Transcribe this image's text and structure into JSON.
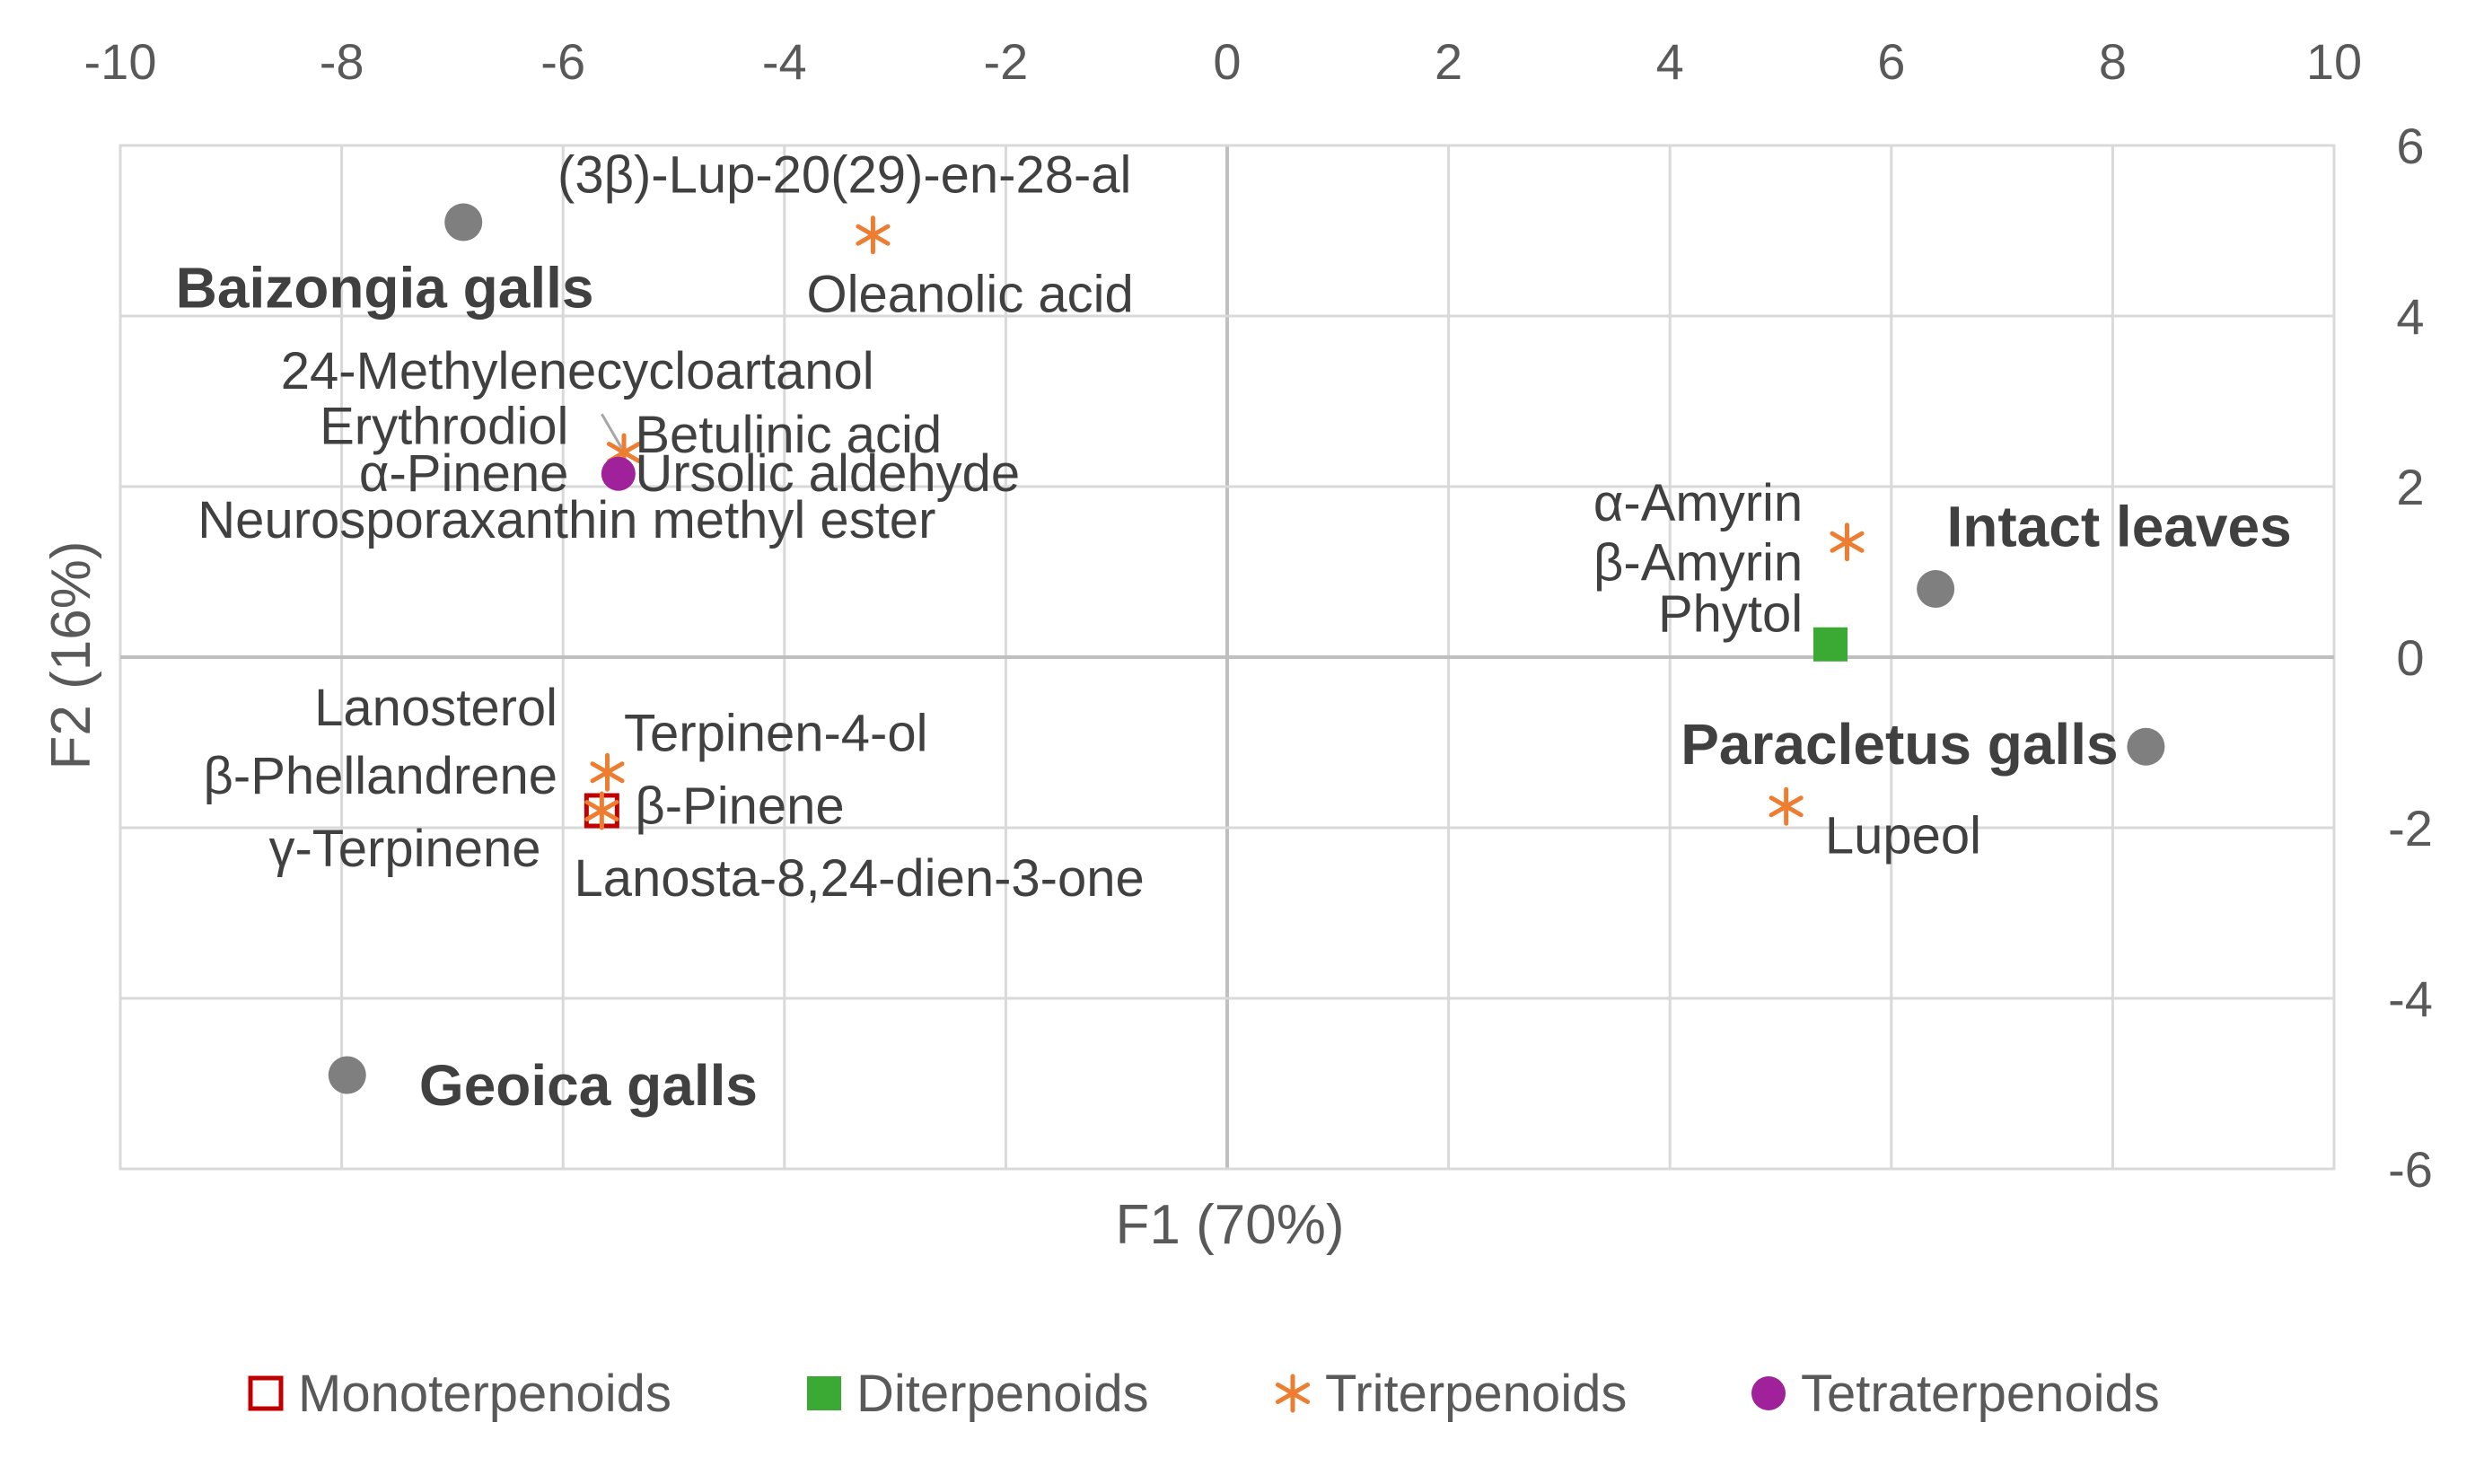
{
  "chart_data": {
    "type": "scatter",
    "title": "",
    "xlabel": "F1 (70%)",
    "ylabel": "F2 (16%)",
    "xlim": [
      -10,
      10
    ],
    "ylim": [
      -6,
      6
    ],
    "x_ticks": [
      -10,
      -8,
      -6,
      -4,
      -2,
      0,
      2,
      4,
      6,
      8,
      10
    ],
    "y_ticks": [
      -6,
      -4,
      -2,
      0,
      2,
      4,
      6
    ],
    "x_axis_position": "top",
    "y_axis_position": "right",
    "grid": true,
    "legend": "bottom",
    "samples": [
      {
        "label": "Baizongia galls",
        "x": -6.9,
        "y": 5.1
      },
      {
        "label": "Intact leaves",
        "x": 6.4,
        "y": 0.8
      },
      {
        "label": "Paracletus galls",
        "x": 8.3,
        "y": -1.05
      },
      {
        "label": "Geoica galls",
        "x": -7.95,
        "y": -4.9
      }
    ],
    "series": [
      {
        "name": "Monoterpenoids",
        "marker": "square-open",
        "color": "#c00000",
        "points": [
          {
            "x": -5.65,
            "y": -1.8
          }
        ]
      },
      {
        "name": "Diterpenoids",
        "marker": "square",
        "color": "#3aaa35",
        "points": [
          {
            "x": 5.45,
            "y": 0.15
          }
        ]
      },
      {
        "name": "Triterpenoids",
        "marker": "asterisk",
        "color": "#ed7d31",
        "points": [
          {
            "x": -3.2,
            "y": 4.95
          },
          {
            "x": -5.45,
            "y": 2.4
          },
          {
            "x": 5.6,
            "y": 1.35
          },
          {
            "x": -5.6,
            "y": -1.35
          },
          {
            "x": -5.65,
            "y": -1.8
          },
          {
            "x": 5.05,
            "y": -1.75
          }
        ]
      },
      {
        "name": "Tetraterpenoids",
        "marker": "circle",
        "color": "#a0229a",
        "points": [
          {
            "x": -5.5,
            "y": 2.15
          }
        ]
      }
    ],
    "annotations": [
      {
        "text": "(3β)-Lup-20(29)-en-28-al",
        "x": -6.05,
        "y": 5.45,
        "anchor": "start"
      },
      {
        "text": "Oleanolic acid",
        "x": -3.8,
        "y": 4.05,
        "anchor": "start"
      },
      {
        "text": "24-Methylenecycloartanol",
        "x": -8.55,
        "y": 3.15,
        "anchor": "start"
      },
      {
        "text": "Erythrodiol",
        "x": -5.95,
        "y": 2.5,
        "anchor": "end"
      },
      {
        "text": "Betulinic acid",
        "x": -5.35,
        "y": 2.4,
        "anchor": "start"
      },
      {
        "text": "α-Pinene",
        "x": -5.95,
        "y": 1.95,
        "anchor": "end"
      },
      {
        "text": "Ursolic aldehyde",
        "x": -5.35,
        "y": 1.95,
        "anchor": "start"
      },
      {
        "text": "Neurosporaxanthin methyl ester",
        "x": -9.3,
        "y": 1.4,
        "anchor": "start"
      },
      {
        "text": "α-Amyrin",
        "x": 5.2,
        "y": 1.6,
        "anchor": "end"
      },
      {
        "text": "β-Amyrin",
        "x": 5.2,
        "y": 0.9,
        "anchor": "end"
      },
      {
        "text": "Phytol",
        "x": 5.2,
        "y": 0.3,
        "anchor": "end"
      },
      {
        "text": "Lanosterol",
        "x": -6.05,
        "y": -0.8,
        "anchor": "end"
      },
      {
        "text": "Terpinen-4-ol",
        "x": -5.45,
        "y": -1.1,
        "anchor": "start"
      },
      {
        "text": "β-Phellandrene",
        "x": -6.05,
        "y": -1.6,
        "anchor": "end"
      },
      {
        "text": "β-Pinene",
        "x": -5.35,
        "y": -1.95,
        "anchor": "start"
      },
      {
        "text": "γ-Terpinene",
        "x": -6.2,
        "y": -2.45,
        "anchor": "end"
      },
      {
        "text": "Lanosta-8,24-dien-3-one",
        "x": -5.9,
        "y": -2.8,
        "anchor": "start"
      },
      {
        "text": "Lupeol",
        "x": 5.4,
        "y": -2.3,
        "anchor": "start"
      }
    ],
    "sample_label_positions": [
      {
        "text": "Baizongia galls",
        "x": -9.5,
        "y": 4.1,
        "anchor": "start"
      },
      {
        "text": "Intact leaves",
        "x": 6.5,
        "y": 1.3,
        "anchor": "start"
      },
      {
        "text": "Paracletus galls",
        "x": 8.05,
        "y": -1.25,
        "anchor": "end"
      },
      {
        "text": "Geoica galls",
        "x": -7.3,
        "y": -5.25,
        "anchor": "start"
      }
    ]
  }
}
